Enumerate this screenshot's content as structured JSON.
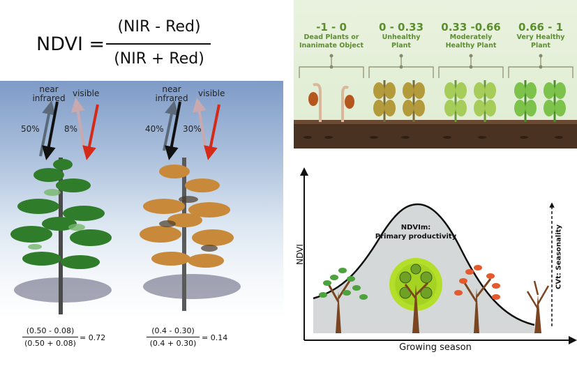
{
  "formula": {
    "label": "NDVI =",
    "numerator": "(NIR - Red)",
    "denominator": "(NIR + Red)"
  },
  "trees": {
    "healthy": {
      "nir_label": "near\ninfrared",
      "visible_label": "visible",
      "nir_pct": "50%",
      "visible_pct": "8%",
      "calc_num": "(0.50 - 0.08)",
      "calc_den": "(0.50 + 0.08)",
      "result": "= 0.72"
    },
    "stressed": {
      "nir_label": "near\ninfrared",
      "visible_label": "visible",
      "nir_pct": "40%",
      "visible_pct": "30%",
      "calc_num": "(0.4 - 0.30)",
      "calc_den": "(0.4 + 0.30)",
      "result": "= 0.14"
    }
  },
  "health_scale": [
    {
      "range": "-1 - 0",
      "desc": "Dead Plants or\nInanimate Object"
    },
    {
      "range": "0 - 0.33",
      "desc": "Unhealthy\nPlant"
    },
    {
      "range": "0.33 -0.66",
      "desc": "Moderately\nHealthy Plant"
    },
    {
      "range": "0.66 - 1",
      "desc": "Very Healthy\nPlant"
    }
  ],
  "season_chart": {
    "ylabel": "NDVI",
    "xlabel": "Growing season",
    "peak_label": "NDVIm:\nPrimary productivity",
    "seasonality_label": "CVt: Seasonality"
  },
  "colors": {
    "nir_arrow_dark": "#111111",
    "nir_arrow_light": "#5a6a7a",
    "red_arrow": "#d42a18",
    "red_arrow_light": "#c9a9ad",
    "accent_green": "#5b8f2e",
    "soil": "#4a3222"
  }
}
